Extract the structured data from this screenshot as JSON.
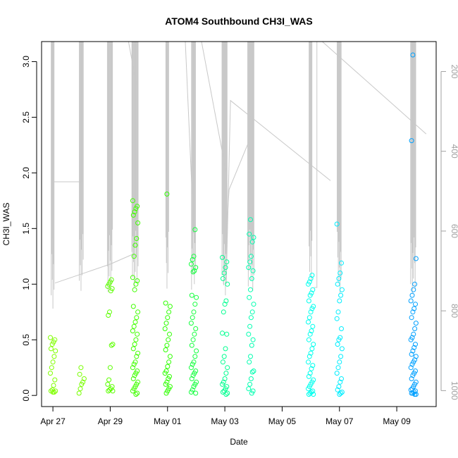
{
  "chart_data": {
    "type": "scatter",
    "title": "ATOM4 Southbound CH3I_WAS",
    "xlabel": "Date",
    "ylabel": "CH3I_WAS",
    "x_range": [
      "2018-04-26T14:30",
      "2018-05-10T09:00"
    ],
    "y_range": [
      -0.1,
      3.18
    ],
    "y_ticks": [
      "0.0",
      "0.5",
      "1.0",
      "1.5",
      "2.0",
      "2.5",
      "3.0"
    ],
    "x_ticks": [
      {
        "date": "2018-04-27",
        "label": "Apr 27"
      },
      {
        "date": "2018-04-29",
        "label": "Apr 29"
      },
      {
        "date": "2018-05-01",
        "label": "May 01"
      },
      {
        "date": "2018-05-03",
        "label": "May 03"
      },
      {
        "date": "2018-05-05",
        "label": "May 05"
      },
      {
        "date": "2018-05-07",
        "label": "May 07"
      },
      {
        "date": "2018-05-09",
        "label": "May 09"
      }
    ],
    "right_axis": {
      "range_top_to_bottom": [
        125,
        1040
      ],
      "ticks": [
        "200",
        "400",
        "600",
        "800",
        "1000"
      ],
      "color": "#a0a0a0"
    },
    "grid": false,
    "legend": "none",
    "profile_line_color": "#c8c8c8",
    "clusters": [
      {
        "date": "2018-04-27T00:00",
        "color": "#80ff00",
        "values": [
          0.52,
          0.5,
          0.48,
          0.46,
          0.42,
          0.4,
          0.35,
          0.3,
          0.25,
          0.2,
          0.14,
          0.09,
          0.05,
          0.04,
          0.04,
          0.03,
          0.03
        ]
      },
      {
        "date": "2018-04-28T00:00",
        "color": "#78ff00",
        "values": [
          0.25,
          0.19,
          0.15,
          0.12,
          0.1,
          0.06,
          0.02
        ]
      },
      {
        "date": "2018-04-29T00:00",
        "color": "#5cff00",
        "values": [
          1.04,
          1.02,
          1.0,
          0.98,
          0.96,
          0.94,
          0.75,
          0.72,
          0.46,
          0.45,
          0.25,
          0.14,
          0.1,
          0.08,
          0.06,
          0.05,
          0.04,
          0.04
        ]
      },
      {
        "date": "2018-04-29T21:00",
        "color": "#40ff00",
        "values": [
          1.75,
          1.7,
          1.68,
          1.65,
          1.62,
          1.55,
          1.41,
          1.35,
          1.25,
          1.06,
          1.03,
          1.0,
          0.95,
          0.8,
          0.75,
          0.7,
          0.66,
          0.62,
          0.58,
          0.55,
          0.5,
          0.46,
          0.42,
          0.38,
          0.35,
          0.3,
          0.28,
          0.25,
          0.22,
          0.2,
          0.18,
          0.15,
          0.12,
          0.1,
          0.08,
          0.06,
          0.04,
          0.02,
          0.01
        ]
      },
      {
        "date": "2018-05-01T00:00",
        "color": "#2eff00",
        "values": [
          1.81,
          0.83,
          0.8,
          0.75,
          0.7,
          0.65,
          0.6,
          0.55,
          0.5,
          0.45,
          0.41,
          0.35,
          0.3,
          0.26,
          0.22,
          0.2,
          0.17,
          0.15,
          0.12,
          0.1,
          0.08,
          0.06,
          0.04,
          0.02
        ]
      },
      {
        "date": "2018-05-01T22:00",
        "color": "#16ff40",
        "values": [
          1.49,
          1.25,
          1.22,
          1.18,
          1.15,
          1.12,
          1.11,
          0.9,
          0.88,
          0.82,
          0.75,
          0.7,
          0.65,
          0.6,
          0.55,
          0.5,
          0.45,
          0.4,
          0.35,
          0.3,
          0.28,
          0.25,
          0.22,
          0.2,
          0.18,
          0.15,
          0.12,
          0.1,
          0.08,
          0.05,
          0.03,
          0.02
        ]
      },
      {
        "date": "2018-05-03T00:00",
        "color": "#00ff90",
        "values": [
          1.24,
          1.2,
          1.15,
          1.1,
          1.05,
          1.0,
          0.85,
          0.82,
          0.75,
          0.56,
          0.55,
          0.42,
          0.35,
          0.3,
          0.25,
          0.2,
          0.15,
          0.12,
          0.1,
          0.08,
          0.06,
          0.04,
          0.03,
          0.02,
          0.01
        ]
      },
      {
        "date": "2018-05-03T22:00",
        "color": "#00ffb0",
        "values": [
          1.58,
          1.45,
          1.42,
          1.38,
          1.25,
          1.2,
          1.15,
          1.12,
          1.05,
          0.95,
          0.88,
          0.82,
          0.75,
          0.7,
          0.62,
          0.55,
          0.5,
          0.45,
          0.35,
          0.3,
          0.22,
          0.21,
          0.15,
          0.1,
          0.06,
          0.04,
          0.02
        ]
      },
      {
        "date": "2018-05-06T00:00",
        "color": "#00ffee",
        "values": [
          1.08,
          1.05,
          1.02,
          1.0,
          0.95,
          0.92,
          0.9,
          0.85,
          0.8,
          0.78,
          0.75,
          0.7,
          0.66,
          0.62,
          0.58,
          0.55,
          0.5,
          0.46,
          0.42,
          0.38,
          0.35,
          0.3,
          0.27,
          0.24,
          0.2,
          0.17,
          0.14,
          0.12,
          0.1,
          0.08,
          0.06,
          0.04,
          0.03,
          0.02,
          0.01,
          0.01
        ]
      },
      {
        "date": "2018-05-07T00:00",
        "color": "#00eeff",
        "values": [
          1.54,
          1.19,
          1.1,
          1.05,
          1.0,
          0.95,
          0.9,
          0.85,
          0.75,
          0.69,
          0.6,
          0.52,
          0.5,
          0.46,
          0.42,
          0.35,
          0.3,
          0.25,
          0.2,
          0.15,
          0.12,
          0.08,
          0.05,
          0.03,
          0.02,
          0.01
        ]
      },
      {
        "date": "2018-05-09T14:00",
        "color": "#00a0ff",
        "values": [
          3.06,
          2.29,
          1.23,
          1.0,
          0.95,
          0.9,
          0.85,
          0.82,
          0.78,
          0.75,
          0.7,
          0.65,
          0.6,
          0.55,
          0.52,
          0.5,
          0.46,
          0.43,
          0.4,
          0.37,
          0.35,
          0.32,
          0.3,
          0.28,
          0.25,
          0.22,
          0.2,
          0.18,
          0.15,
          0.12,
          0.1,
          0.08,
          0.06,
          0.05,
          0.04,
          0.03,
          0.02,
          0.02,
          0.01,
          0.01
        ]
      }
    ]
  }
}
